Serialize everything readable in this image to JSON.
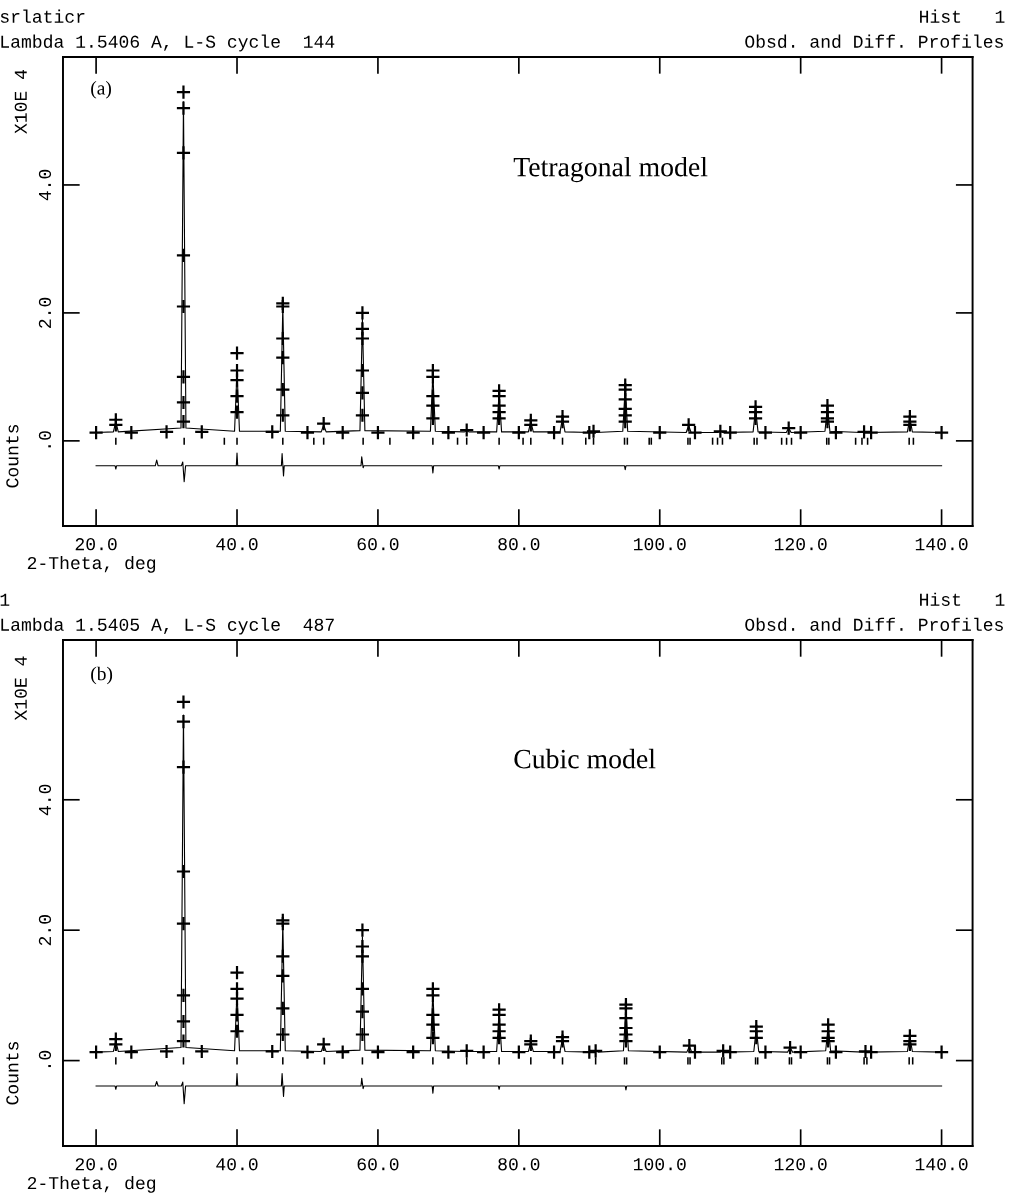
{
  "chart_data": [
    {
      "type": "scatter",
      "title": "Obsd. and Diff. Profiles",
      "subtitle": "Lambda 1.5406 A, L-S cycle  144",
      "xlabel": "2-Theta, deg",
      "ylabel": "Counts",
      "annotations": [
        "srlaticr",
        "Hist   1",
        "(a)",
        "Tetragonal model",
        "X10E 4"
      ],
      "xlim": [
        15.3,
        144.4
      ],
      "ylim": [
        -1.33,
        6.0
      ],
      "xticks": [
        {
          "value": 20,
          "label": "20.0"
        },
        {
          "value": 40,
          "label": "40.0"
        },
        {
          "value": 60,
          "label": "60.0"
        },
        {
          "value": 80,
          "label": "80.0"
        },
        {
          "value": 100,
          "label": "100.0"
        },
        {
          "value": 120,
          "label": "120.0"
        },
        {
          "value": 140,
          "label": "140.0"
        }
      ],
      "yticks": [
        {
          "value": 0,
          "label": ".0"
        },
        {
          "value": 2,
          "label": "2.0"
        },
        {
          "value": 4,
          "label": "4.0"
        }
      ],
      "grid": false,
      "legend": false,
      "series": [
        {
          "marker": "cross",
          "color": "#000000",
          "x": [
            20,
            25,
            30,
            35,
            45,
            50,
            55,
            60,
            65,
            70,
            75,
            80,
            85,
            90,
            100,
            105,
            110,
            115,
            120,
            125,
            130,
            140,
            22.8,
            22.8,
            32.4,
            32.4,
            32.4,
            32.4,
            32.4,
            32.4,
            32.4,
            32.4,
            40.0,
            40.0,
            40.0,
            40.0,
            40.0,
            46.5,
            46.5,
            46.5,
            46.5,
            46.5,
            46.5,
            52.3,
            57.8,
            57.8,
            57.8,
            57.8,
            57.8,
            57.8,
            67.8,
            67.8,
            67.8,
            67.8,
            67.8,
            72.6,
            77.2,
            77.2,
            77.2,
            77.2,
            77.2,
            81.7,
            81.7,
            86.2,
            86.2,
            90.6,
            95.1,
            95.1,
            95.1,
            95.1,
            95.1,
            95.1,
            104.1,
            108.6,
            113.6,
            113.6,
            113.6,
            118.3,
            123.8,
            123.8,
            123.8,
            123.8,
            129.0,
            135.5,
            135.5,
            135.5
          ],
          "values": [
            0.13,
            0.13,
            0.14,
            0.14,
            0.14,
            0.13,
            0.13,
            0.13,
            0.13,
            0.13,
            0.13,
            0.13,
            0.13,
            0.13,
            0.13,
            0.13,
            0.13,
            0.13,
            0.13,
            0.13,
            0.13,
            0.13,
            0.33,
            0.25,
            5.45,
            5.2,
            4.5,
            2.9,
            2.1,
            1.0,
            0.6,
            0.3,
            1.37,
            1.1,
            0.95,
            0.7,
            0.45,
            2.15,
            2.1,
            1.6,
            1.3,
            0.8,
            0.4,
            0.27,
            2.0,
            1.75,
            1.6,
            1.1,
            0.75,
            0.4,
            1.1,
            1.0,
            0.7,
            0.55,
            0.35,
            0.17,
            0.78,
            0.7,
            0.55,
            0.45,
            0.35,
            0.32,
            0.25,
            0.38,
            0.3,
            0.15,
            0.87,
            0.8,
            0.65,
            0.5,
            0.4,
            0.3,
            0.25,
            0.15,
            0.53,
            0.45,
            0.35,
            0.2,
            0.55,
            0.45,
            0.35,
            0.3,
            0.14,
            0.38,
            0.3,
            0.25
          ]
        },
        {
          "type": "line",
          "line_style": "solid",
          "color": "#000000",
          "x": [
            20,
            22.45,
            22.8,
            23.15,
            32.05,
            32.4,
            32.75,
            39.65,
            40.0,
            40.35,
            46.15,
            46.5,
            46.85,
            51.95,
            52.3,
            52.65,
            57.45,
            57.8,
            58.15,
            67.45,
            67.8,
            68.15,
            72.25,
            72.6,
            72.95,
            76.85,
            77.2,
            77.55,
            81.35,
            81.7,
            82.05,
            85.85,
            86.2,
            86.55,
            90.25,
            90.6,
            90.95,
            94.75,
            95.1,
            95.45,
            103.75,
            104.1,
            104.45,
            108.25,
            108.6,
            108.95,
            113.25,
            113.6,
            113.95,
            117.95,
            118.3,
            118.65,
            123.45,
            123.8,
            124.15,
            128.65,
            129.0,
            129.35,
            135.15,
            135.5,
            135.85,
            140
          ],
          "values": [
            0.13,
            0.14,
            0.3,
            0.14,
            0.2,
            5.3,
            0.2,
            0.15,
            1.1,
            0.15,
            0.15,
            2.1,
            0.15,
            0.14,
            0.25,
            0.14,
            0.16,
            1.9,
            0.16,
            0.15,
            1.05,
            0.15,
            0.14,
            0.16,
            0.14,
            0.14,
            0.75,
            0.14,
            0.14,
            0.3,
            0.14,
            0.14,
            0.36,
            0.14,
            0.13,
            0.15,
            0.13,
            0.15,
            0.85,
            0.15,
            0.13,
            0.24,
            0.13,
            0.13,
            0.15,
            0.13,
            0.14,
            0.5,
            0.14,
            0.13,
            0.2,
            0.13,
            0.15,
            0.53,
            0.15,
            0.13,
            0.14,
            0.13,
            0.14,
            0.36,
            0.14,
            0.13
          ]
        },
        {
          "type": "line",
          "line_style": "solid",
          "color": "#000000",
          "x": [
            20,
            22.7,
            22.8,
            22.9,
            28.4,
            28.6,
            28.8,
            32.1,
            32.3,
            32.5,
            32.7,
            39.9,
            40.0,
            40.1,
            46.3,
            46.4,
            46.6,
            46.7,
            57.6,
            57.7,
            57.9,
            58.0,
            67.7,
            67.8,
            67.9,
            77.1,
            77.2,
            77.3,
            95.0,
            95.1,
            95.2,
            140
          ],
          "values": [
            -0.39,
            -0.39,
            -0.44,
            -0.39,
            -0.39,
            -0.3,
            -0.39,
            -0.39,
            -0.33,
            -0.64,
            -0.39,
            -0.39,
            -0.19,
            -0.39,
            -0.39,
            -0.2,
            -0.55,
            -0.39,
            -0.39,
            -0.25,
            -0.42,
            -0.39,
            -0.39,
            -0.5,
            -0.39,
            -0.39,
            -0.44,
            -0.39,
            -0.39,
            -0.45,
            -0.39,
            -0.39
          ]
        },
        {
          "type": "bar",
          "color": "#000000",
          "x": [
            22.8,
            32.5,
            38.2,
            40.0,
            46.5,
            50.9,
            52.3,
            57.9,
            61.7,
            67.8,
            71.3,
            72.6,
            77.2,
            80.6,
            81.7,
            86.2,
            89.5,
            90.6,
            95.0,
            95.4,
            98.5,
            98.8,
            104.0,
            104.3,
            107.5,
            108.2,
            108.9,
            113.4,
            113.8,
            117.3,
            118.0,
            118.7,
            123.7,
            124.0,
            127.8,
            128.7,
            129.5,
            135.4,
            136.0
          ],
          "base": [
            -0.06,
            -0.06,
            -0.06,
            -0.06,
            -0.06,
            -0.06,
            -0.06,
            -0.06,
            -0.06,
            -0.06,
            -0.06,
            -0.06,
            -0.06,
            -0.06,
            -0.06,
            -0.06,
            -0.06,
            -0.06,
            -0.06,
            -0.06,
            -0.06,
            -0.06,
            -0.06,
            -0.06,
            -0.06,
            -0.06,
            -0.06,
            -0.06,
            -0.06,
            -0.06,
            -0.06,
            -0.06,
            -0.06,
            -0.06,
            -0.06,
            -0.06,
            -0.06,
            -0.06,
            -0.06
          ],
          "values": [
            0.11,
            0.11,
            0.11,
            0.11,
            0.11,
            0.11,
            0.11,
            0.11,
            0.11,
            0.11,
            0.11,
            0.11,
            0.11,
            0.11,
            0.11,
            0.11,
            0.11,
            0.11,
            0.11,
            0.11,
            0.11,
            0.11,
            0.11,
            0.11,
            0.11,
            0.11,
            0.11,
            0.11,
            0.11,
            0.11,
            0.11,
            0.11,
            0.11,
            0.11,
            0.11,
            0.11,
            0.11,
            0.11,
            0.11
          ]
        }
      ]
    },
    {
      "type": "scatter",
      "title": "Obsd. and Diff. Profiles",
      "subtitle": "Lambda 1.5405 A, L-S cycle  487",
      "xlabel": "2-Theta, deg",
      "ylabel": "Counts",
      "annotations": [
        "1",
        "Hist   1",
        "(b)",
        "Cubic model",
        "X10E 4"
      ],
      "xlim": [
        15.3,
        144.4
      ],
      "ylim": [
        -1.31,
        6.45
      ],
      "xticks": [
        {
          "value": 20,
          "label": "20.0"
        },
        {
          "value": 40,
          "label": "40.0"
        },
        {
          "value": 60,
          "label": "60.0"
        },
        {
          "value": 80,
          "label": "80.0"
        },
        {
          "value": 100,
          "label": "100.0"
        },
        {
          "value": 120,
          "label": "120.0"
        },
        {
          "value": 140,
          "label": "140.0"
        }
      ],
      "yticks": [
        {
          "value": 0,
          "label": ".0"
        },
        {
          "value": 2,
          "label": "2.0"
        },
        {
          "value": 4,
          "label": "4.0"
        }
      ],
      "grid": false,
      "legend": false,
      "series": [
        {
          "marker": "cross",
          "color": "#000000",
          "x": [
            20,
            25,
            30,
            35,
            45,
            50,
            55,
            60,
            65,
            70,
            75,
            80,
            85,
            90,
            100,
            105,
            110,
            115,
            120,
            125,
            130,
            140,
            22.8,
            22.8,
            32.4,
            32.4,
            32.4,
            32.4,
            32.4,
            32.4,
            32.4,
            32.4,
            40.0,
            40.0,
            40.0,
            40.0,
            40.0,
            46.5,
            46.5,
            46.5,
            46.5,
            46.5,
            46.5,
            52.3,
            57.8,
            57.8,
            57.8,
            57.8,
            57.8,
            57.8,
            67.8,
            67.8,
            67.8,
            67.8,
            67.8,
            72.6,
            77.2,
            77.2,
            77.2,
            77.2,
            77.2,
            81.7,
            81.7,
            86.2,
            86.2,
            90.9,
            95.2,
            95.2,
            95.2,
            95.2,
            95.2,
            95.2,
            104.2,
            109.0,
            113.7,
            113.7,
            113.7,
            118.5,
            123.9,
            123.9,
            123.9,
            123.9,
            129.2,
            135.5,
            135.5,
            135.5
          ],
          "values": [
            0.13,
            0.13,
            0.14,
            0.14,
            0.14,
            0.13,
            0.13,
            0.13,
            0.13,
            0.13,
            0.13,
            0.13,
            0.13,
            0.13,
            0.13,
            0.13,
            0.13,
            0.13,
            0.13,
            0.13,
            0.13,
            0.13,
            0.33,
            0.25,
            5.5,
            5.2,
            4.5,
            2.9,
            2.1,
            1.0,
            0.6,
            0.3,
            1.35,
            1.1,
            0.95,
            0.7,
            0.45,
            2.15,
            2.1,
            1.6,
            1.3,
            0.8,
            0.4,
            0.25,
            2.0,
            1.75,
            1.6,
            1.1,
            0.75,
            0.4,
            1.1,
            1.0,
            0.7,
            0.55,
            0.35,
            0.15,
            0.78,
            0.7,
            0.55,
            0.45,
            0.35,
            0.3,
            0.25,
            0.36,
            0.3,
            0.15,
            0.86,
            0.8,
            0.65,
            0.5,
            0.4,
            0.3,
            0.23,
            0.15,
            0.52,
            0.45,
            0.35,
            0.2,
            0.55,
            0.45,
            0.35,
            0.3,
            0.14,
            0.38,
            0.3,
            0.25
          ]
        },
        {
          "type": "line",
          "line_style": "solid",
          "color": "#000000",
          "x": [
            20,
            22.45,
            22.8,
            23.15,
            32.05,
            32.4,
            32.75,
            39.65,
            40.0,
            40.35,
            46.15,
            46.5,
            46.85,
            51.95,
            52.3,
            52.65,
            57.45,
            57.8,
            58.15,
            67.45,
            67.8,
            68.15,
            72.25,
            72.6,
            72.95,
            76.85,
            77.2,
            77.55,
            81.35,
            81.7,
            82.05,
            85.85,
            86.2,
            86.55,
            90.55,
            90.9,
            91.25,
            94.85,
            95.2,
            95.55,
            103.85,
            104.2,
            104.55,
            108.65,
            109.0,
            109.35,
            113.35,
            113.7,
            114.05,
            118.15,
            118.5,
            118.85,
            123.55,
            123.9,
            124.25,
            128.85,
            129.2,
            129.55,
            135.15,
            135.5,
            135.85,
            140
          ],
          "values": [
            0.13,
            0.14,
            0.3,
            0.14,
            0.2,
            5.3,
            0.2,
            0.15,
            1.05,
            0.15,
            0.15,
            2.1,
            0.15,
            0.14,
            0.24,
            0.14,
            0.16,
            1.9,
            0.16,
            0.15,
            1.05,
            0.15,
            0.14,
            0.15,
            0.14,
            0.14,
            0.75,
            0.14,
            0.14,
            0.28,
            0.14,
            0.14,
            0.34,
            0.14,
            0.13,
            0.15,
            0.13,
            0.15,
            0.84,
            0.15,
            0.13,
            0.22,
            0.13,
            0.13,
            0.15,
            0.13,
            0.14,
            0.5,
            0.14,
            0.13,
            0.2,
            0.13,
            0.15,
            0.53,
            0.15,
            0.13,
            0.14,
            0.13,
            0.14,
            0.36,
            0.14,
            0.13
          ]
        },
        {
          "type": "line",
          "line_style": "solid",
          "color": "#000000",
          "x": [
            20,
            22.7,
            22.8,
            22.9,
            28.4,
            28.6,
            28.8,
            32.1,
            32.3,
            32.5,
            32.7,
            39.9,
            40.0,
            40.1,
            46.3,
            46.4,
            46.6,
            46.7,
            57.6,
            57.7,
            57.9,
            58.0,
            67.7,
            67.8,
            67.9,
            77.1,
            77.2,
            77.3,
            95.1,
            95.2,
            95.3,
            140
          ],
          "values": [
            -0.39,
            -0.39,
            -0.44,
            -0.39,
            -0.39,
            -0.32,
            -0.39,
            -0.39,
            -0.33,
            -0.66,
            -0.39,
            -0.39,
            -0.2,
            -0.39,
            -0.39,
            -0.2,
            -0.55,
            -0.39,
            -0.39,
            -0.27,
            -0.43,
            -0.39,
            -0.39,
            -0.5,
            -0.39,
            -0.39,
            -0.44,
            -0.39,
            -0.39,
            -0.45,
            -0.39,
            -0.39
          ]
        },
        {
          "type": "bar",
          "color": "#000000",
          "x": [
            22.8,
            32.4,
            40.0,
            46.5,
            52.4,
            57.8,
            67.8,
            72.6,
            77.2,
            81.7,
            86.2,
            90.9,
            95.0,
            95.3,
            104.0,
            104.3,
            108.8,
            109.1,
            113.6,
            113.9,
            118.4,
            118.7,
            123.8,
            124.1,
            129.0,
            129.4,
            135.4,
            135.9
          ],
          "base": [
            -0.06,
            -0.06,
            -0.06,
            -0.06,
            -0.06,
            -0.06,
            -0.06,
            -0.06,
            -0.06,
            -0.06,
            -0.06,
            -0.06,
            -0.06,
            -0.06,
            -0.06,
            -0.06,
            -0.06,
            -0.06,
            -0.06,
            -0.06,
            -0.06,
            -0.06,
            -0.06,
            -0.06,
            -0.06,
            -0.06,
            -0.06,
            -0.06
          ],
          "values": [
            0.11,
            0.11,
            0.11,
            0.11,
            0.11,
            0.11,
            0.11,
            0.11,
            0.11,
            0.11,
            0.11,
            0.11,
            0.11,
            0.11,
            0.11,
            0.11,
            0.11,
            0.11,
            0.11,
            0.11,
            0.11,
            0.11,
            0.11,
            0.11,
            0.11,
            0.11,
            0.11,
            0.11
          ]
        }
      ]
    }
  ]
}
